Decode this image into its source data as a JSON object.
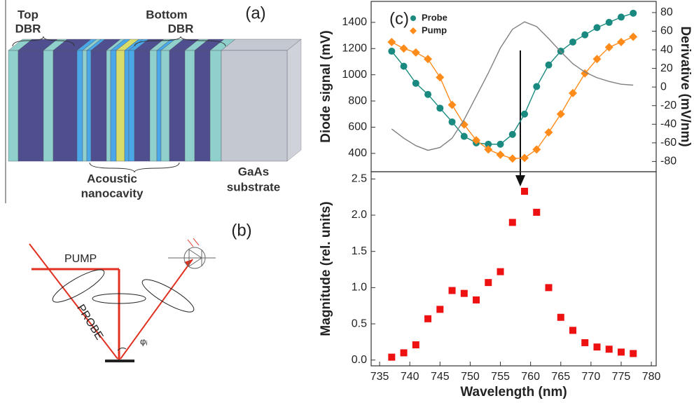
{
  "panel_a": {
    "label": "(a)",
    "top_dbr": [
      "Top",
      "DBR"
    ],
    "bottom_dbr": [
      "Bottom",
      "DBR"
    ],
    "cavity": [
      "Acoustic",
      "nanocavity"
    ],
    "substrate": [
      "GaAs",
      "substrate"
    ]
  },
  "panel_b": {
    "label": "(b)",
    "pump": "PUMP",
    "probe": "PROBE",
    "angle": "φᵢ"
  },
  "chart_data": [
    {
      "type": "line",
      "label": "(c)",
      "ylabel": "Diode signal (mV)",
      "y2label": "Derivative (mV/nm)",
      "x": [
        737,
        739,
        741,
        743,
        745,
        747,
        749,
        751,
        753,
        755,
        757,
        759,
        761,
        763,
        765,
        767,
        769,
        771,
        773,
        775,
        777
      ],
      "xlim": [
        733.6,
        780.8
      ],
      "ylim": [
        260,
        1560
      ],
      "yticks": [
        400,
        600,
        800,
        1000,
        1200,
        1400
      ],
      "y2lim": [
        -91,
        92
      ],
      "y2ticks": [
        -80,
        -60,
        -40,
        -20,
        0,
        20,
        40,
        60,
        80
      ],
      "legend": "upper left",
      "series": [
        {
          "name": "Probe",
          "color": "#1a8a80",
          "marker": "circle",
          "values": [
            1180,
            1065,
            935,
            850,
            745,
            640,
            530,
            480,
            470,
            470,
            545,
            700,
            910,
            1075,
            1180,
            1250,
            1305,
            1360,
            1400,
            1440,
            1470
          ]
        },
        {
          "name": "Pump",
          "color": "#ff8c1a",
          "marker": "diamond",
          "values": [
            1250,
            1200,
            1170,
            1120,
            980,
            770,
            620,
            500,
            430,
            390,
            360,
            365,
            430,
            560,
            700,
            860,
            1010,
            1120,
            1210,
            1250,
            1290
          ]
        },
        {
          "color": "#808080",
          "axis": "y2",
          "values": [
            -45,
            -55,
            -63,
            -68,
            -65,
            -55,
            -35,
            -10,
            15,
            42,
            62,
            70,
            65,
            52,
            38,
            25,
            16,
            10,
            6,
            3,
            2
          ]
        }
      ]
    },
    {
      "type": "scatter",
      "xlabel": "Wavelength (nm)",
      "ylabel": "Magnitude (rel. units)",
      "x": [
        737,
        739,
        741,
        743,
        745,
        747,
        749,
        751,
        753,
        755,
        757,
        759,
        761,
        763,
        765,
        767,
        769,
        771,
        773,
        775,
        777
      ],
      "xlim": [
        733.6,
        780.8
      ],
      "xticks": [
        735,
        740,
        745,
        750,
        755,
        760,
        765,
        770,
        775,
        780
      ],
      "ylim": [
        -0.08,
        2.6
      ],
      "yticks": [
        {
          "value": 0,
          "label": "0.0"
        },
        0.5,
        {
          "value": 1,
          "label": "1.0"
        },
        1.5,
        {
          "value": 2,
          "label": "2.0"
        },
        2.5
      ],
      "color": "#ee1111",
      "marker": "square",
      "values": [
        0.04,
        0.1,
        0.21,
        0.57,
        0.7,
        0.96,
        0.92,
        0.83,
        1.07,
        1.22,
        1.9,
        2.33,
        2.04,
        1.0,
        0.59,
        0.41,
        0.24,
        0.18,
        0.15,
        0.11,
        0.09
      ]
    }
  ]
}
